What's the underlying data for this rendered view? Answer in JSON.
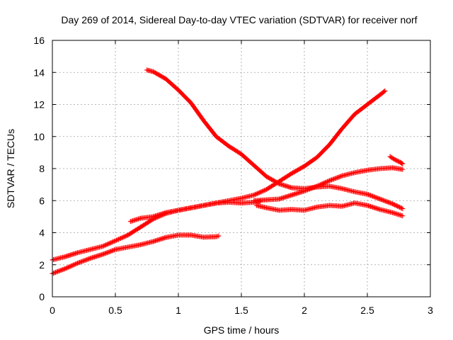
{
  "chart_data": {
    "type": "scatter",
    "title": "Day 269 of 2014, Sidereal Day-to-day VTEC variation (SDTVAR) for receiver norf",
    "xlabel": "GPS time / hours",
    "ylabel": "SDTVAR / TECUs",
    "xlim": [
      0,
      3
    ],
    "ylim": [
      0,
      16
    ],
    "xticks": [
      0,
      0.5,
      1,
      1.5,
      2,
      2.5,
      3
    ],
    "xtick_labels": [
      "0",
      "0.5",
      "1",
      "1.5",
      "2",
      "2.5",
      "3"
    ],
    "yticks": [
      0,
      2,
      4,
      6,
      8,
      10,
      12,
      14,
      16
    ],
    "ytick_labels": [
      "0",
      "2",
      "4",
      "6",
      "8",
      "10",
      "12",
      "14",
      "16"
    ],
    "grid": true,
    "marker": "plus",
    "color": "#ff0000",
    "series": [
      {
        "name": "satellite track 1",
        "x": [
          0.0,
          0.1,
          0.2,
          0.3,
          0.4,
          0.5,
          0.6,
          0.7,
          0.8,
          0.9,
          1.0,
          1.1,
          1.2,
          1.3,
          1.4,
          1.5,
          1.6,
          1.7,
          1.8,
          1.9,
          2.0,
          2.1,
          2.2,
          2.3,
          2.4,
          2.5,
          2.6,
          2.64
        ],
        "y": [
          2.3,
          2.5,
          2.75,
          2.95,
          3.15,
          3.5,
          3.85,
          4.35,
          4.85,
          5.2,
          5.4,
          5.55,
          5.7,
          5.85,
          6.0,
          6.15,
          6.35,
          6.7,
          7.2,
          7.7,
          8.15,
          8.7,
          9.5,
          10.5,
          11.4,
          12.0,
          12.6,
          12.85
        ]
      },
      {
        "name": "satellite track 2",
        "x": [
          0.0,
          0.1,
          0.2,
          0.3,
          0.4,
          0.5,
          0.6,
          0.7,
          0.8,
          0.9,
          1.0,
          1.1,
          1.2,
          1.3,
          1.32
        ],
        "y": [
          1.45,
          1.75,
          2.1,
          2.4,
          2.65,
          2.95,
          3.1,
          3.25,
          3.45,
          3.7,
          3.85,
          3.85,
          3.72,
          3.75,
          3.8
        ]
      },
      {
        "name": "satellite track 3",
        "x": [
          0.62,
          0.7,
          0.8,
          0.9,
          1.0,
          1.1,
          1.2,
          1.3,
          1.4,
          1.5,
          1.6,
          1.65
        ],
        "y": [
          4.7,
          4.9,
          5.0,
          5.25,
          5.4,
          5.55,
          5.7,
          5.85,
          5.9,
          5.85,
          5.9,
          5.95
        ]
      },
      {
        "name": "satellite track 4",
        "x": [
          0.75,
          0.8,
          0.9,
          1.0,
          1.1,
          1.2,
          1.3,
          1.4,
          1.5,
          1.6,
          1.7,
          1.8,
          1.9,
          2.0,
          2.1,
          2.2,
          2.3,
          2.4,
          2.5,
          2.6,
          2.7,
          2.78
        ],
        "y": [
          14.15,
          14.05,
          13.6,
          12.9,
          12.1,
          11.0,
          10.0,
          9.4,
          8.9,
          8.2,
          7.5,
          7.05,
          6.8,
          6.75,
          6.85,
          6.9,
          6.75,
          6.55,
          6.4,
          6.1,
          5.8,
          5.5
        ]
      },
      {
        "name": "satellite track 5",
        "x": [
          1.62,
          1.7,
          1.8,
          1.9,
          2.0,
          2.1,
          2.2,
          2.3,
          2.4,
          2.5,
          2.6,
          2.7,
          2.78
        ],
        "y": [
          5.7,
          5.55,
          5.4,
          5.45,
          5.4,
          5.6,
          5.7,
          5.65,
          5.85,
          5.7,
          5.45,
          5.25,
          5.05
        ]
      },
      {
        "name": "satellite track 6",
        "x": [
          1.6,
          1.7,
          1.8,
          1.9,
          2.0,
          2.1,
          2.2,
          2.3,
          2.4,
          2.5,
          2.6,
          2.7,
          2.78
        ],
        "y": [
          6.0,
          6.05,
          6.1,
          6.35,
          6.6,
          6.9,
          7.25,
          7.55,
          7.75,
          7.9,
          8.0,
          8.05,
          7.95
        ]
      },
      {
        "name": "satellite track 7",
        "x": [
          2.68,
          2.72,
          2.76,
          2.78
        ],
        "y": [
          8.75,
          8.55,
          8.4,
          8.3
        ]
      }
    ]
  }
}
